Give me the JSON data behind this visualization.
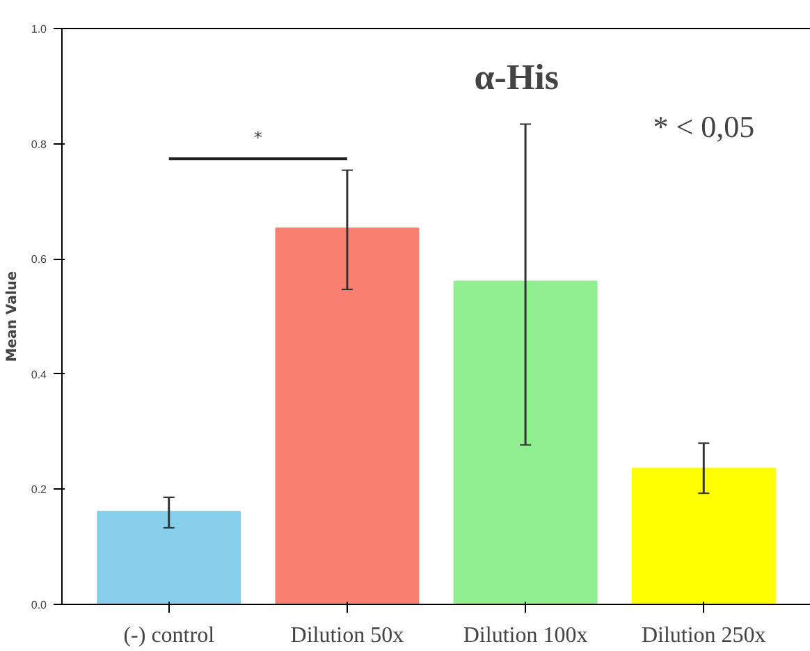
{
  "chart_data": {
    "type": "bar",
    "title": "α-His",
    "ylabel": "Mean Value",
    "categories": [
      "(-) control",
      "Dilution 50x",
      "Dilution 100x",
      "Dilution 250x"
    ],
    "values": [
      0.161,
      0.653,
      0.561,
      0.236
    ],
    "colors": [
      "#87ceeb",
      "#fa8072",
      "#90ee90",
      "#ffff00"
    ],
    "errors": [
      [
        0.133,
        0.186
      ],
      [
        0.547,
        0.754
      ],
      [
        0.277,
        0.834
      ],
      [
        0.193,
        0.28
      ]
    ],
    "ylim": [
      0,
      1.0
    ],
    "yticks": [
      {
        "value": 0,
        "label": "0.0"
      },
      {
        "value": 0.2,
        "label": "0.2"
      },
      {
        "value": 0.4,
        "label": "0.4"
      },
      {
        "value": 0.6,
        "label": "0.6"
      },
      {
        "value": 0.8,
        "label": "0.8"
      },
      {
        "value": 1.0,
        "label": "1.0"
      }
    ],
    "annotations": [
      "*",
      "* < 0,05"
    ],
    "grid": false
  }
}
